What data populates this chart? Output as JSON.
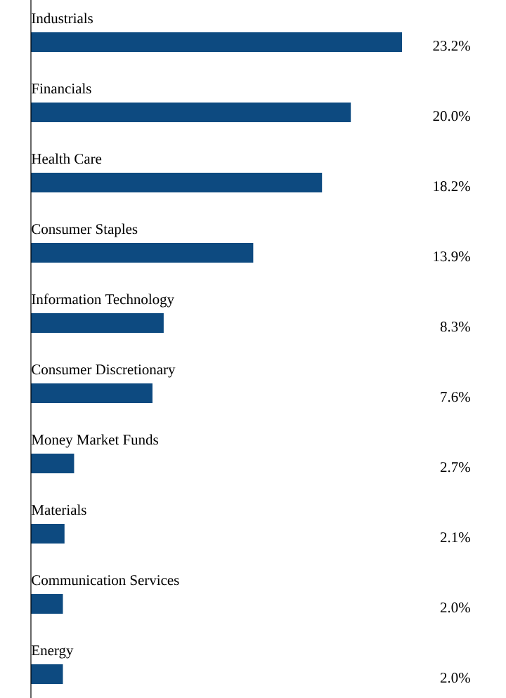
{
  "chart_data": {
    "type": "bar",
    "orientation": "horizontal",
    "categories": [
      "Industrials",
      "Financials",
      "Health Care",
      "Consumer Staples",
      "Information Technology",
      "Consumer Discretionary",
      "Money Market Funds",
      "Materials",
      "Communication Services",
      "Energy"
    ],
    "values": [
      23.2,
      20.0,
      18.2,
      13.9,
      8.3,
      7.6,
      2.7,
      2.1,
      2.0,
      2.0
    ],
    "value_labels": [
      "23.2%",
      "20.0%",
      "18.2%",
      "13.9%",
      "8.3%",
      "7.6%",
      "2.7%",
      "2.1%",
      "2.0%",
      "2.0%"
    ],
    "color": "#0d4a80"
  }
}
